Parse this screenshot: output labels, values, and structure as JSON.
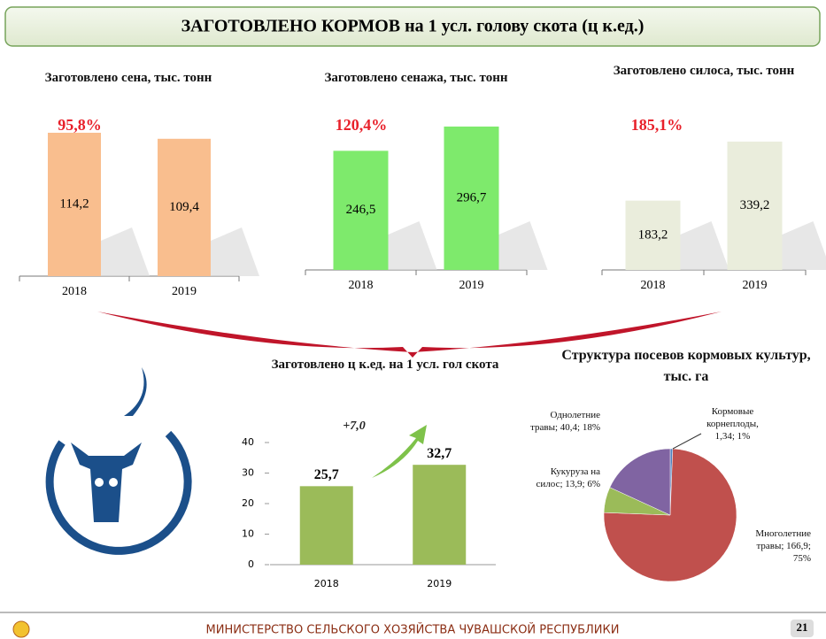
{
  "header": {
    "title": "ЗАГОТОВЛЕНО КОРМОВ на 1 усл. голову скота (ц к.ед.)"
  },
  "chart_data": [
    {
      "type": "bar",
      "title": "Заготовлено сена, тыс. тонн",
      "annotation": "95,8%",
      "categories": [
        "2018",
        "2019"
      ],
      "values": [
        114.2,
        109.4
      ],
      "value_labels": [
        "114,2",
        "109,4"
      ],
      "color": "#f9be8e"
    },
    {
      "type": "bar",
      "title": "Заготовлено сенажа, тыс. тонн",
      "annotation": "120,4%",
      "categories": [
        "2018",
        "2019"
      ],
      "values": [
        246.5,
        296.7
      ],
      "value_labels": [
        "246,5",
        "296,7"
      ],
      "color": "#7eea6c"
    },
    {
      "type": "bar",
      "title": "Заготовлено силоса, тыс. тонн",
      "annotation": "185,1%",
      "categories": [
        "2018",
        "2019"
      ],
      "values": [
        183.2,
        339.2
      ],
      "value_labels": [
        "183,2",
        "339,2"
      ],
      "color": "#eaeddc"
    },
    {
      "type": "bar",
      "title": "Заготовлено ц к.ед. на 1 усл. гол скота",
      "annotation": "+7,0",
      "categories": [
        "2018",
        "2019"
      ],
      "values": [
        25.7,
        32.7
      ],
      "value_labels": [
        "25,7",
        "32,7"
      ],
      "color": "#9bbb59",
      "ylim": [
        0,
        40
      ],
      "yticks": [
        0,
        10,
        20,
        30,
        40
      ]
    },
    {
      "type": "pie",
      "title": "Структура посевов кормовых культур, тыс. га",
      "values": [
        1.34,
        166.9,
        13.9,
        40.4
      ],
      "value_labels": [
        "Кормовые корнеплоды, 1,34; 1%",
        "Многолетние травы; 166,9; 75%",
        "Кукуруза на силос; 13,9; 6%",
        "Однолетние травы; 40,4; 18%"
      ],
      "colors": [
        "#4f81bd",
        "#c0504d",
        "#9bbb59",
        "#8064a2"
      ]
    }
  ],
  "footer": {
    "text": "МИНИСТЕРСТВО СЕЛЬСКОГО ХОЗЯЙСТВА ЧУВАШСКОЙ РЕСПУБЛИКИ",
    "page": "21"
  }
}
